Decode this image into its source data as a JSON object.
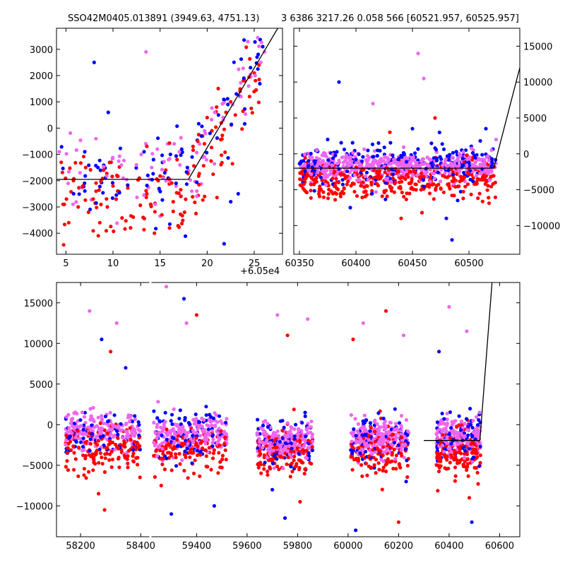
{
  "figure": {
    "title_left": "SSO42M0405.013891 (3949.63, 4751.13)",
    "title_right": "3 6386 3217.26 0.058 566 [60521.957, 60525.957]",
    "offset_text": "+6.05e4"
  },
  "colors": {
    "series_red": "#ff0000",
    "series_blue": "#0000ff",
    "series_pink": "#ee66ee",
    "model_line": "#000000",
    "axes": "#000000",
    "background": "#ffffff"
  },
  "chart_data": [
    {
      "type": "scatter",
      "panel": "top-left",
      "xlim": [
        4,
        28
      ],
      "ylim": [
        -4800,
        3800
      ],
      "x_ticks": [
        5,
        10,
        15,
        20,
        25
      ],
      "x_tick_labels": [
        "5",
        "10",
        "15",
        "20",
        "25"
      ],
      "y_ticks": [
        -4000,
        -3000,
        -2000,
        -1000,
        0,
        1000,
        2000,
        3000
      ],
      "y_tick_labels": [
        "−4000",
        "−3000",
        "−2000",
        "−1000",
        "0",
        "1000",
        "2000",
        "3000"
      ],
      "x_offset_label": "+6.05e4",
      "series": [
        {
          "color": "red",
          "values": [
            [
              4.5,
              -1300
            ],
            [
              4.7,
              -2900
            ],
            [
              5.3,
              -3600
            ],
            [
              5.8,
              -2000
            ],
            [
              6.3,
              -3000
            ],
            [
              6.8,
              -2200
            ],
            [
              7.1,
              -1500
            ],
            [
              7.4,
              -3200
            ],
            [
              7.9,
              -2700
            ],
            [
              8.2,
              -2400
            ],
            [
              8.6,
              -3600
            ],
            [
              9.0,
              -1600
            ],
            [
              9.4,
              -3000
            ],
            [
              9.8,
              -1300
            ],
            [
              10.0,
              -2200
            ],
            [
              12.8,
              -1900
            ],
            [
              13.2,
              -3400
            ],
            [
              13.6,
              -2500
            ],
            [
              14.0,
              -2900
            ],
            [
              14.4,
              -4000
            ],
            [
              14.8,
              -2000
            ],
            [
              15.2,
              -3300
            ],
            [
              15.6,
              -1600
            ],
            [
              16.0,
              -3800
            ],
            [
              16.4,
              -2800
            ],
            [
              16.8,
              -1200
            ],
            [
              17.2,
              -2600
            ],
            [
              17.6,
              -3200
            ],
            [
              18.5,
              -700
            ],
            [
              19.0,
              -500
            ],
            [
              19.5,
              -300
            ],
            [
              20.0,
              400
            ],
            [
              20.5,
              -100
            ],
            [
              21.0,
              800
            ],
            [
              21.5,
              200
            ],
            [
              22.0,
              600
            ],
            [
              22.5,
              1000
            ],
            [
              23.0,
              500
            ],
            [
              23.5,
              1400
            ],
            [
              24.0,
              1800
            ],
            [
              24.5,
              1200
            ],
            [
              25.0,
              2100
            ],
            [
              25.5,
              2400
            ]
          ]
        },
        {
          "color": "blue",
          "values": [
            [
              7.0,
              -900
            ],
            [
              8.0,
              2500
            ],
            [
              8.4,
              -1500
            ],
            [
              9.5,
              600
            ],
            [
              13.3,
              -900
            ],
            [
              13.7,
              -1800
            ],
            [
              14.3,
              -1200
            ],
            [
              14.9,
              -2300
            ],
            [
              15.5,
              -1700
            ],
            [
              16.1,
              -1000
            ],
            [
              16.7,
              -2100
            ],
            [
              17.3,
              -800
            ],
            [
              17.9,
              -1500
            ],
            [
              18.4,
              -1100
            ],
            [
              19.4,
              -300
            ],
            [
              20.3,
              -200
            ],
            [
              21.2,
              500
            ],
            [
              22.2,
              900
            ],
            [
              23.1,
              1300
            ],
            [
              23.9,
              1900
            ],
            [
              24.6,
              2300
            ],
            [
              25.3,
              2700
            ],
            [
              25.9,
              3100
            ],
            [
              22.5,
              -2800
            ],
            [
              23.3,
              -2500
            ],
            [
              21.8,
              -4400
            ]
          ]
        },
        {
          "color": "pink",
          "values": [
            [
              4.3,
              -900
            ],
            [
              6.5,
              -1700
            ],
            [
              12.5,
              -1400
            ],
            [
              13.0,
              -1000
            ],
            [
              13.5,
              2900
            ],
            [
              14.1,
              -1500
            ],
            [
              14.7,
              -800
            ],
            [
              15.3,
              -1900
            ],
            [
              15.9,
              -1200
            ],
            [
              16.5,
              -600
            ],
            [
              17.1,
              -1400
            ],
            [
              19.8,
              -200
            ],
            [
              20.8,
              600
            ],
            [
              21.7,
              300
            ],
            [
              22.7,
              900
            ],
            [
              23.6,
              1200
            ],
            [
              24.4,
              1600
            ],
            [
              25.1,
              2000
            ],
            [
              25.7,
              2500
            ],
            [
              26.1,
              2900
            ],
            [
              14.5,
              -2900
            ]
          ]
        }
      ],
      "model_line": [
        [
          4,
          -1950
        ],
        [
          18,
          -1950
        ],
        [
          27.5,
          3800
        ]
      ]
    },
    {
      "type": "scatter",
      "panel": "top-right",
      "xlim": [
        60345,
        60545
      ],
      "ylim": [
        -14000,
        17500
      ],
      "x_ticks": [
        60350,
        60400,
        60450,
        60500
      ],
      "x_tick_labels": [
        "60350",
        "60400",
        "60450",
        "60500"
      ],
      "y_ticks": [
        -10000,
        -5000,
        0,
        5000,
        10000,
        15000
      ],
      "y_tick_labels": [
        "−10000",
        "−5000",
        "0",
        "5000",
        "10000",
        "15000"
      ],
      "y_axis_side": "right",
      "series": [
        {
          "color": "red",
          "values": [
            [
              60352,
              -2500
            ],
            [
              60370,
              -3700
            ],
            [
              60390,
              -3000
            ],
            [
              60410,
              -4500
            ],
            [
              60425,
              -5200
            ],
            [
              60435,
              -4000
            ],
            [
              60445,
              -5500
            ],
            [
              60460,
              -3200
            ],
            [
              60475,
              -4800
            ],
            [
              60485,
              -5800
            ],
            [
              60495,
              -3500
            ],
            [
              60505,
              -4200
            ],
            [
              60515,
              -3800
            ],
            [
              60430,
              3000
            ],
            [
              60470,
              5000
            ],
            [
              60440,
              -9000
            ]
          ]
        },
        {
          "color": "blue",
          "values": [
            [
              60358,
              -1000
            ],
            [
              60375,
              2000
            ],
            [
              60385,
              10000
            ],
            [
              60400,
              -800
            ],
            [
              60420,
              1500
            ],
            [
              60450,
              3500
            ],
            [
              60470,
              800
            ],
            [
              60480,
              -9000
            ],
            [
              60485,
              -12000
            ],
            [
              60490,
              -6500
            ],
            [
              60500,
              -1200
            ],
            [
              60510,
              1800
            ],
            [
              60515,
              3500
            ],
            [
              60395,
              -7500
            ]
          ]
        },
        {
          "color": "pink",
          "values": [
            [
              60355,
              -1500
            ],
            [
              60372,
              -1800
            ],
            [
              60390,
              -2000
            ],
            [
              60405,
              -1700
            ],
            [
              60420,
              -1900
            ],
            [
              60440,
              -2100
            ],
            [
              60455,
              -1800
            ],
            [
              60470,
              -2000
            ],
            [
              60490,
              -1900
            ],
            [
              60510,
              -1500
            ],
            [
              60520,
              500
            ],
            [
              60524,
              2000
            ],
            [
              60455,
              14000
            ],
            [
              60460,
              10500
            ],
            [
              60415,
              7000
            ]
          ]
        }
      ],
      "model_line": [
        [
          60345,
          -2000
        ],
        [
          60521.957,
          -2000
        ],
        [
          60545,
          12000
        ]
      ]
    },
    {
      "type": "scatter",
      "panel": "bottom",
      "xlim_segments": [
        [
          58120,
          58430
        ],
        [
          59220,
          60680
        ]
      ],
      "ylim": [
        -13800,
        17500
      ],
      "x_ticks": [
        58200,
        58400,
        59400,
        59600,
        59800,
        60000,
        60200,
        60400,
        60600
      ],
      "x_tick_labels": [
        "58200",
        "58400",
        "59400",
        "59600",
        "59800",
        "60000",
        "60200",
        "60400",
        "60600"
      ],
      "y_ticks": [
        -10000,
        -5000,
        0,
        5000,
        10000,
        15000
      ],
      "y_tick_labels": [
        "−10000",
        "−5000",
        "0",
        "5000",
        "10000",
        "15000"
      ],
      "seasons": [
        {
          "x_range": [
            58150,
            58400
          ],
          "red_center": -3000,
          "blue_center": -1200,
          "pink_center": -800
        },
        {
          "x_range": [
            59230,
            59520
          ],
          "red_center": -3200,
          "blue_center": -1500,
          "pink_center": -1100
        },
        {
          "x_range": [
            59640,
            59860
          ],
          "red_center": -3500,
          "blue_center": -2200,
          "pink_center": -2000
        },
        {
          "x_range": [
            60010,
            60240
          ],
          "red_center": -3300,
          "blue_center": -1800,
          "pink_center": -1700
        },
        {
          "x_range": [
            60350,
            60525
          ],
          "red_center": -3600,
          "blue_center": -1500,
          "pink_center": -1500
        }
      ],
      "series": [
        {
          "color": "red",
          "values": [
            [
              58260,
              -8500
            ],
            [
              58300,
              9000
            ],
            [
              58280,
              -10500
            ],
            [
              59260,
              -7500
            ],
            [
              59400,
              13500
            ],
            [
              59760,
              11000
            ],
            [
              59810,
              -9500
            ],
            [
              60020,
              10500
            ],
            [
              60150,
              14000
            ],
            [
              60200,
              -12000
            ],
            [
              60480,
              -9000
            ]
          ]
        },
        {
          "color": "blue",
          "values": [
            [
              58270,
              10500
            ],
            [
              58350,
              7000
            ],
            [
              59300,
              -11000
            ],
            [
              59350,
              15500
            ],
            [
              59470,
              -10000
            ],
            [
              59700,
              -8000
            ],
            [
              59750,
              -11500
            ],
            [
              60030,
              -13000
            ],
            [
              60230,
              -7000
            ],
            [
              60360,
              9000
            ],
            [
              60490,
              -12000
            ]
          ]
        },
        {
          "color": "pink",
          "values": [
            [
              58230,
              14000
            ],
            [
              58320,
              12500
            ],
            [
              59280,
              17000
            ],
            [
              59360,
              12500
            ],
            [
              59720,
              13500
            ],
            [
              59840,
              13000
            ],
            [
              60060,
              12500
            ],
            [
              60220,
              11000
            ],
            [
              60400,
              14500
            ],
            [
              60470,
              11500
            ]
          ]
        }
      ],
      "model_line": [
        [
          60300,
          -1950
        ],
        [
          60521.957,
          -1950
        ],
        [
          60570,
          17500
        ]
      ]
    }
  ]
}
